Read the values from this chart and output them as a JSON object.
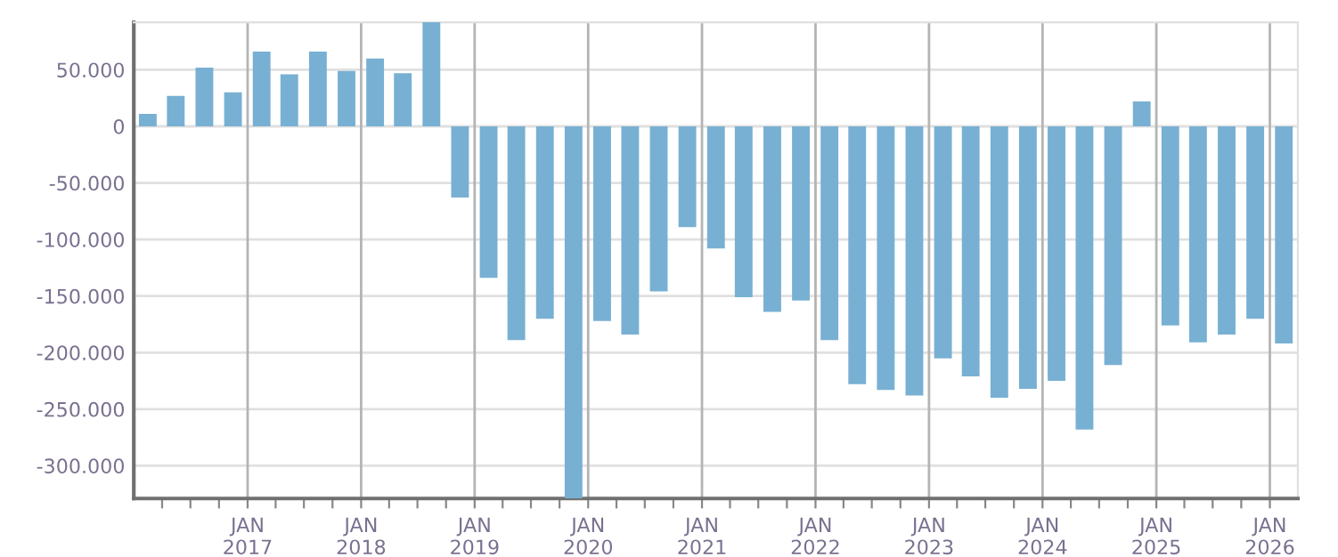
{
  "chart_data": {
    "type": "bar",
    "color": "#78b0d3",
    "x": [
      "2016-02-15",
      "2016-05-15",
      "2016-08-15",
      "2016-11-15",
      "2017-02-15",
      "2017-05-15",
      "2017-08-15",
      "2017-11-15",
      "2018-02-15",
      "2018-05-15",
      "2018-08-15",
      "2018-11-15",
      "2019-02-15",
      "2019-05-15",
      "2019-08-15",
      "2019-11-15",
      "2020-02-15",
      "2020-05-15",
      "2020-08-15",
      "2020-11-15",
      "2021-02-15",
      "2021-05-15",
      "2021-08-15",
      "2021-11-15",
      "2022-02-15",
      "2022-05-15",
      "2022-08-15",
      "2022-11-15",
      "2023-02-15",
      "2023-05-15",
      "2023-08-15",
      "2023-11-15",
      "2024-02-15",
      "2024-05-15",
      "2024-08-15",
      "2024-11-15",
      "2025-02-15",
      "2025-05-15",
      "2025-08-15",
      "2025-11-15",
      "2026-02-15"
    ],
    "values": [
      11000,
      27000,
      52000,
      30000,
      66000,
      46000,
      66000,
      49000,
      60000,
      47000,
      92000,
      -63000,
      -134000,
      -189000,
      -170000,
      -329000,
      -172000,
      -184000,
      -146000,
      -89000,
      -108000,
      -151000,
      -164000,
      -154000,
      -189000,
      -228000,
      -233000,
      -238000,
      -205000,
      -221000,
      -240000,
      -232000,
      -225000,
      -268000,
      -211000,
      22000,
      -176000,
      -191000,
      -184000,
      -170000,
      -192000
    ],
    "xlim": [
      "2016-01-01",
      "2026-04-01"
    ],
    "xticks": [
      {
        "value": "2016-04-01",
        "label": null
      },
      {
        "value": "2016-07-01",
        "label": null
      },
      {
        "value": "2016-10-01",
        "label": null
      },
      {
        "value": "2017-01-01",
        "label": "JAN\n2017"
      },
      {
        "value": "2017-04-01",
        "label": null
      },
      {
        "value": "2017-07-01",
        "label": null
      },
      {
        "value": "2017-10-01",
        "label": null
      },
      {
        "value": "2018-01-01",
        "label": "JAN\n2018"
      },
      {
        "value": "2018-04-01",
        "label": null
      },
      {
        "value": "2018-07-01",
        "label": null
      },
      {
        "value": "2018-10-01",
        "label": null
      },
      {
        "value": "2019-01-01",
        "label": "JAN\n2019"
      },
      {
        "value": "2019-04-01",
        "label": null
      },
      {
        "value": "2019-07-01",
        "label": null
      },
      {
        "value": "2019-10-01",
        "label": null
      },
      {
        "value": "2020-01-01",
        "label": "JAN\n2020"
      },
      {
        "value": "2020-04-01",
        "label": null
      },
      {
        "value": "2020-07-01",
        "label": null
      },
      {
        "value": "2020-10-01",
        "label": null
      },
      {
        "value": "2021-01-01",
        "label": "JAN\n2021"
      },
      {
        "value": "2021-04-01",
        "label": null
      },
      {
        "value": "2021-07-01",
        "label": null
      },
      {
        "value": "2021-10-01",
        "label": null
      },
      {
        "value": "2022-01-01",
        "label": "JAN\n2022"
      },
      {
        "value": "2022-04-01",
        "label": null
      },
      {
        "value": "2022-07-01",
        "label": null
      },
      {
        "value": "2022-10-01",
        "label": null
      },
      {
        "value": "2023-01-01",
        "label": "JAN\n2023"
      },
      {
        "value": "2023-04-01",
        "label": null
      },
      {
        "value": "2023-07-01",
        "label": null
      },
      {
        "value": "2023-10-01",
        "label": null
      },
      {
        "value": "2024-01-01",
        "label": "JAN\n2024"
      },
      {
        "value": "2024-04-01",
        "label": null
      },
      {
        "value": "2024-07-01",
        "label": null
      },
      {
        "value": "2024-10-01",
        "label": null
      },
      {
        "value": "2025-01-01",
        "label": "JAN\n2025"
      },
      {
        "value": "2025-04-01",
        "label": null
      },
      {
        "value": "2025-07-01",
        "label": null
      },
      {
        "value": "2025-10-01",
        "label": null
      },
      {
        "value": "2026-01-01",
        "label": "JAN\n2026"
      }
    ],
    "ylim": [
      -329000,
      92000
    ],
    "yticks": [
      {
        "value": 50000,
        "label": "50.000"
      },
      0,
      {
        "value": -50000,
        "label": "-50.000"
      },
      {
        "value": -100000,
        "label": "-100.000"
      },
      {
        "value": -150000,
        "label": "-150.000"
      },
      {
        "value": -200000,
        "label": "-200.000"
      },
      {
        "value": -250000,
        "label": "-250.000"
      },
      {
        "value": -300000,
        "label": "-300.000"
      }
    ],
    "grid": true
  }
}
